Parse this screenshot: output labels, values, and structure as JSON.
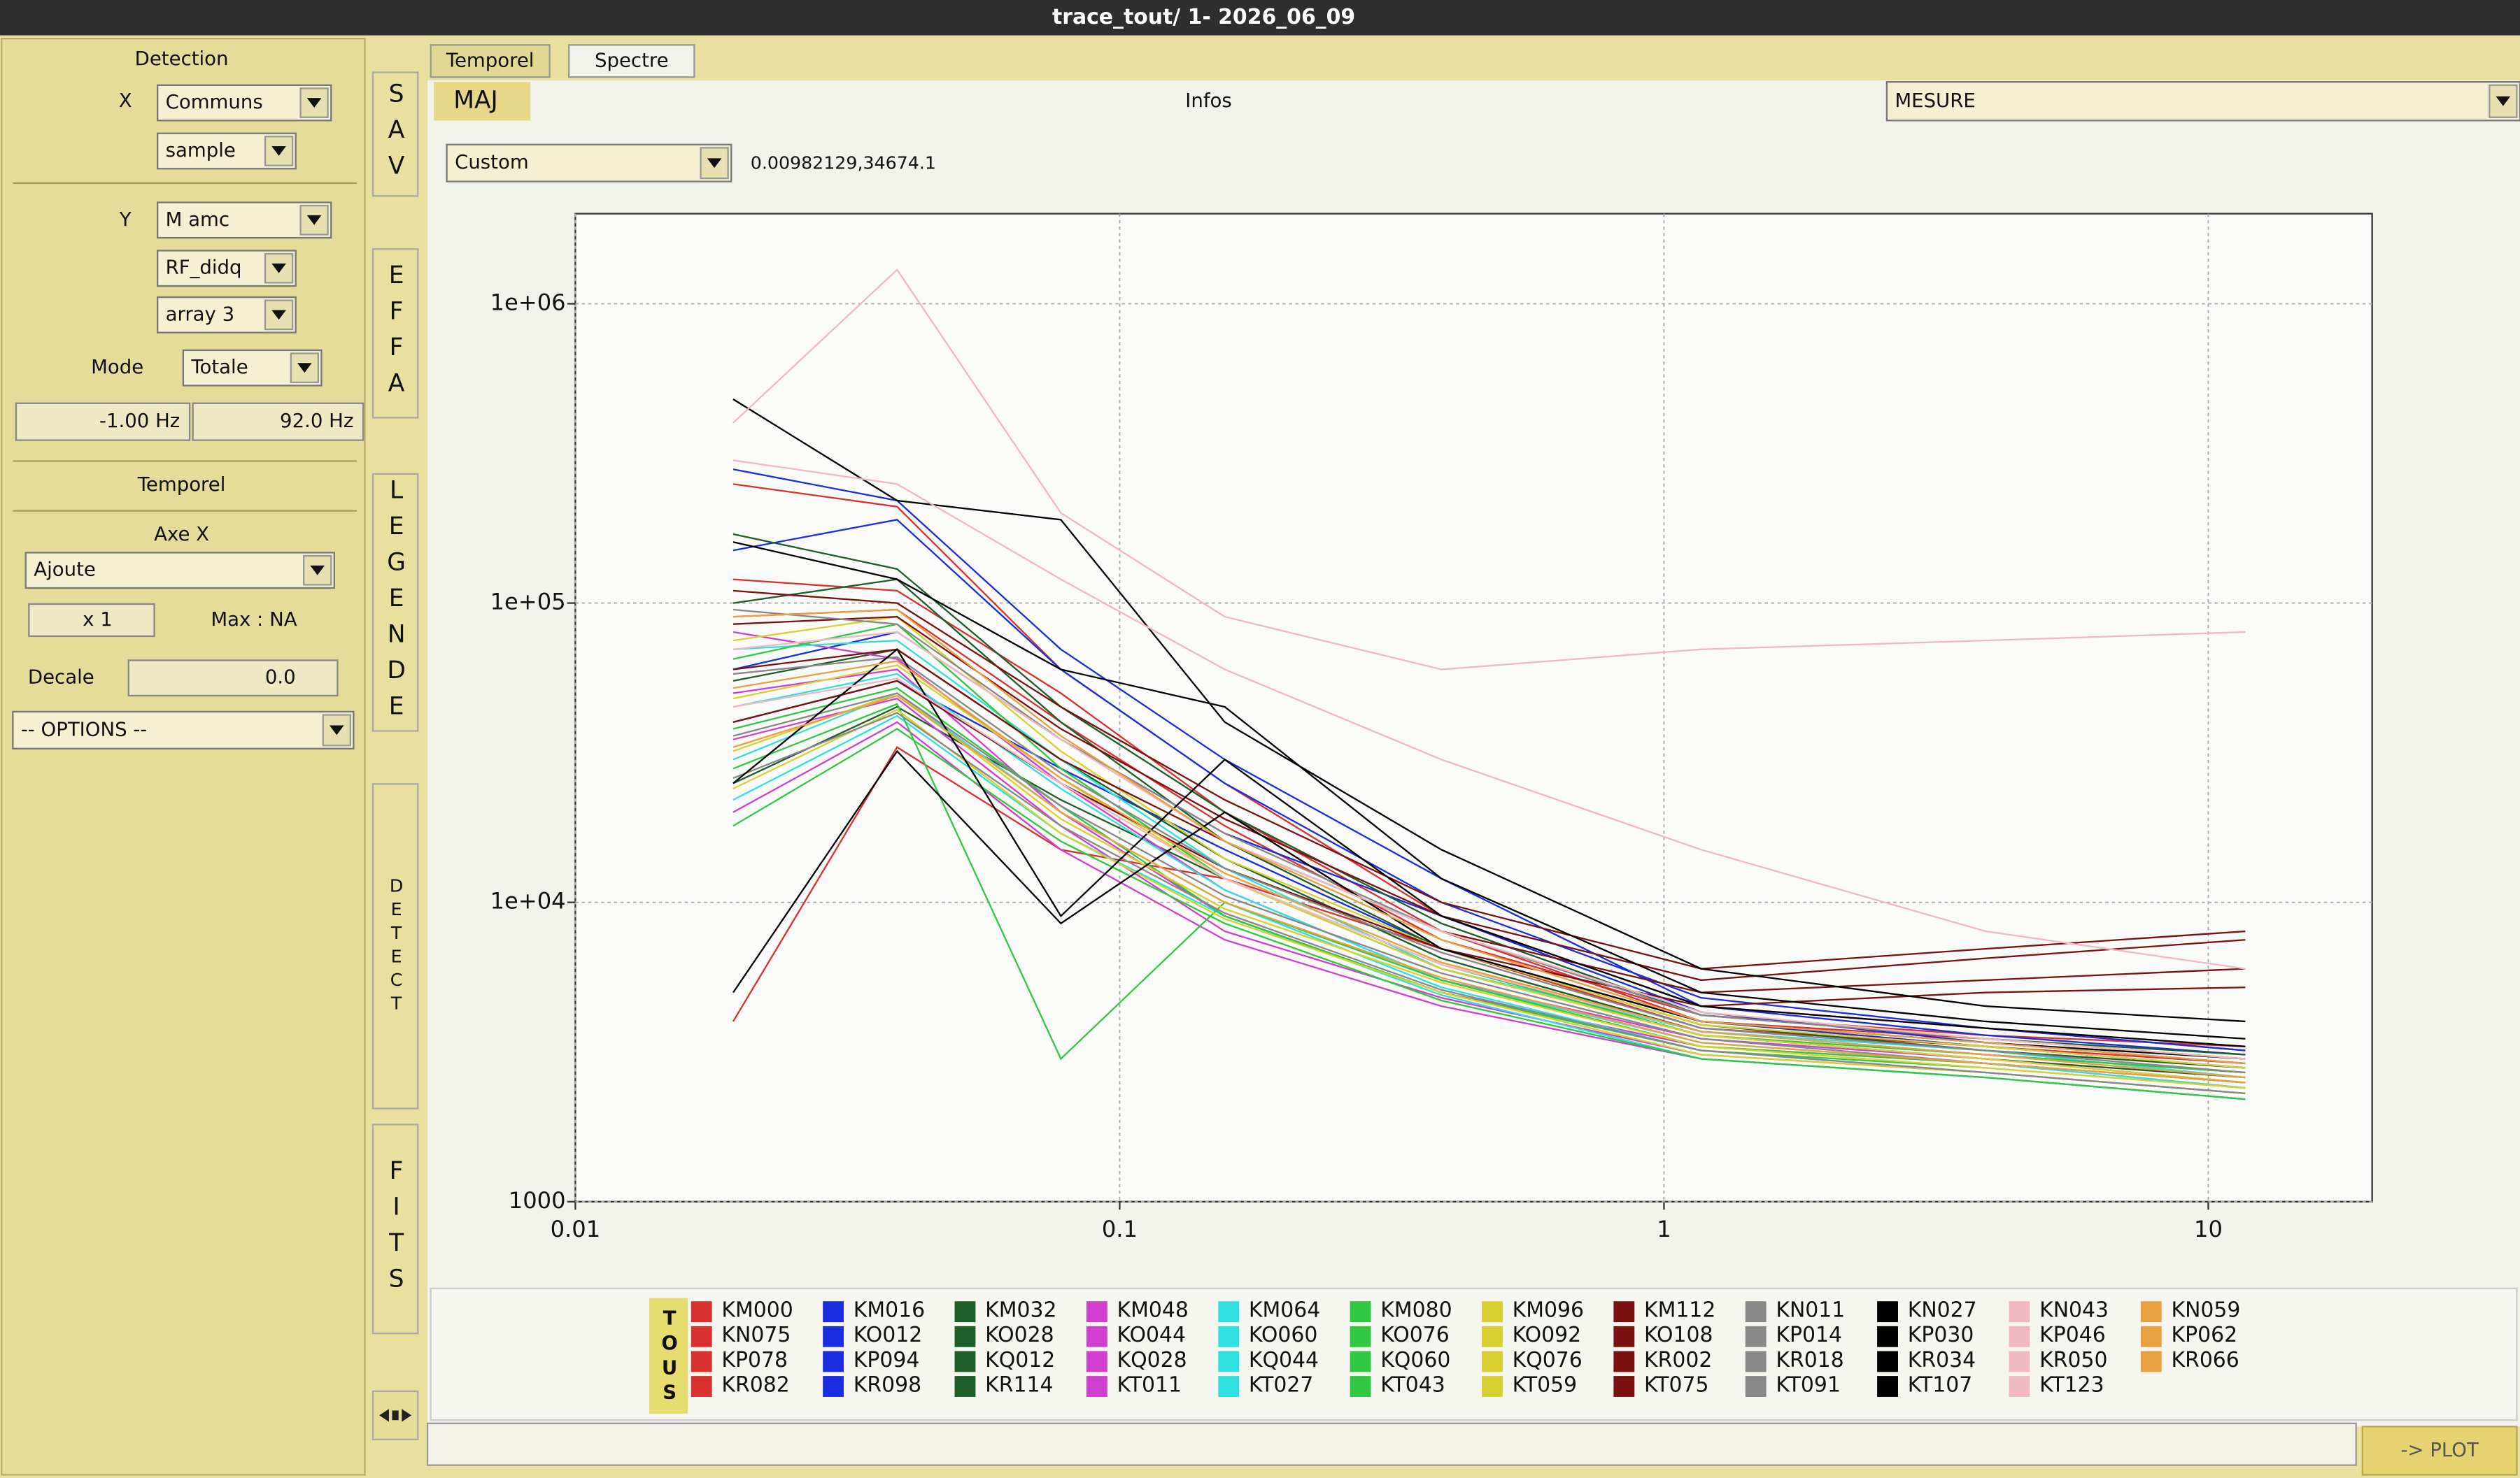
{
  "window": {
    "title": "trace_tout/ 1- 2026_06_09"
  },
  "left_panel": {
    "detection": "Detection",
    "x_label": "X",
    "x_source": "Communs",
    "x_mode": "sample",
    "y_label": "Y",
    "y_source": "M amc",
    "y_signal": "RF_didq",
    "y_array": "array 3",
    "mode_label": "Mode",
    "mode": "Totale",
    "freq_min": "-1.00 Hz",
    "freq_max": "92.0 Hz",
    "temporel": "Temporel",
    "axe_x": "Axe X",
    "axe_x_mode": "Ajoute",
    "multiplier": "x 1",
    "max": "Max : NA",
    "decale_label": "Decale",
    "decale": "0.0",
    "options": "-- OPTIONS --"
  },
  "side_tabs": [
    "SAV",
    "EFFA",
    "LEGENDE",
    "DETECT",
    "FITS"
  ],
  "tabs": [
    "Temporel",
    "Spectre"
  ],
  "toolbar": {
    "maj": "MAJ",
    "infos": "Infos",
    "mesure": "MESURE",
    "scale": "Custom",
    "cursor": "0.00982129,34674.1"
  },
  "legend_all": "TOUS",
  "plot_button": "-> PLOT",
  "chart_data": {
    "type": "line",
    "log_x": true,
    "log_y": true,
    "grid": true,
    "xlim": [
      0.01,
      20
    ],
    "ylim": [
      1000,
      2000000
    ],
    "xticks": [
      0.01,
      0.1,
      1,
      10
    ],
    "yticks": [
      1000,
      {
        "value": 10000,
        "label": "1e+04"
      },
      {
        "value": 100000,
        "label": "1e+05"
      },
      {
        "value": 1000000,
        "label": "1e+06"
      }
    ],
    "x": [
      0.0195,
      0.039,
      0.078,
      0.156,
      0.39,
      1.17,
      3.9,
      11.7
    ],
    "series": [
      {
        "name": "KM000",
        "color": "#d93030",
        "values": [
          250000,
          210000,
          60000,
          25000,
          9000,
          4500,
          3800,
          3200
        ]
      },
      {
        "name": "KN075",
        "color": "#d93030",
        "values": [
          120000,
          110000,
          50000,
          20000,
          8000,
          4000,
          3500,
          3000
        ]
      },
      {
        "name": "KP078",
        "color": "#d93030",
        "values": [
          4000,
          33000,
          15000,
          12000,
          7000,
          3800,
          3300,
          2900
        ]
      },
      {
        "name": "KR082",
        "color": "#d93030",
        "values": [
          90000,
          95000,
          40000,
          18000,
          7500,
          4200,
          3600,
          3300
        ]
      },
      {
        "name": "KM016",
        "color": "#1a2ee0",
        "values": [
          280000,
          220000,
          70000,
          30000,
          12000,
          4500,
          3600,
          3100
        ]
      },
      {
        "name": "KO012",
        "color": "#1a2ee0",
        "values": [
          150000,
          190000,
          60000,
          25000,
          10000,
          4800,
          3800,
          3200
        ]
      },
      {
        "name": "KP094",
        "color": "#1a2ee0",
        "values": [
          60000,
          80000,
          35000,
          17000,
          9000,
          4300,
          3400,
          2900
        ]
      },
      {
        "name": "KR098",
        "color": "#1a2ee0",
        "values": [
          40000,
          55000,
          28000,
          15000,
          7000,
          4000,
          3300,
          2800
        ]
      },
      {
        "name": "KM032",
        "color": "#1d5e2a",
        "values": [
          170000,
          130000,
          45000,
          20000,
          8500,
          4200,
          3500,
          3100
        ]
      },
      {
        "name": "KO028",
        "color": "#1d5e2a",
        "values": [
          100000,
          120000,
          40000,
          16000,
          7000,
          3900,
          3200,
          2800
        ]
      },
      {
        "name": "KQ012",
        "color": "#1d5e2a",
        "values": [
          55000,
          70000,
          30000,
          14000,
          6500,
          3700,
          3100,
          2700
        ]
      },
      {
        "name": "KR114",
        "color": "#1d5e2a",
        "values": [
          25000,
          45000,
          22000,
          12000,
          6000,
          3600,
          3000,
          2600
        ]
      },
      {
        "name": "KM048",
        "color": "#d040d0",
        "values": [
          80000,
          65000,
          25000,
          11000,
          5500,
          3500,
          3000,
          2500
        ]
      },
      {
        "name": "KO044",
        "color": "#d040d0",
        "values": [
          50000,
          60000,
          20000,
          9000,
          5000,
          3300,
          2900,
          2400
        ]
      },
      {
        "name": "KQ028",
        "color": "#d040d0",
        "values": [
          35000,
          48000,
          18000,
          8000,
          4800,
          3100,
          2700,
          2300
        ]
      },
      {
        "name": "KT011",
        "color": "#d040d0",
        "values": [
          20000,
          40000,
          15000,
          7500,
          4500,
          3000,
          2600,
          2200
        ]
      },
      {
        "name": "KM064",
        "color": "#30e0e0",
        "values": [
          70000,
          75000,
          30000,
          13000,
          6000,
          3700,
          3200,
          2600
        ]
      },
      {
        "name": "KO060",
        "color": "#30e0e0",
        "values": [
          45000,
          58000,
          24000,
          11000,
          5500,
          3400,
          2900,
          2400
        ]
      },
      {
        "name": "KQ044",
        "color": "#30e0e0",
        "values": [
          30000,
          50000,
          20000,
          10000,
          5200,
          3200,
          2700,
          2300
        ]
      },
      {
        "name": "KT027",
        "color": "#30e0e0",
        "values": [
          22000,
          42000,
          17000,
          9000,
          4900,
          3000,
          2600,
          2200
        ]
      },
      {
        "name": "KM080",
        "color": "#30c840",
        "values": [
          65000,
          85000,
          28000,
          12000,
          6200,
          3600,
          3100,
          2700
        ]
      },
      {
        "name": "KO076",
        "color": "#30c840",
        "values": [
          38000,
          52000,
          21000,
          9000,
          5000,
          3200,
          2800,
          2400
        ]
      },
      {
        "name": "KQ060",
        "color": "#30c840",
        "values": [
          28000,
          46000,
          3000,
          10000,
          5500,
          3300,
          2900,
          2500
        ]
      },
      {
        "name": "KT043",
        "color": "#30c840",
        "values": [
          18000,
          38000,
          16000,
          8500,
          4700,
          3000,
          2600,
          2200
        ]
      },
      {
        "name": "KM096",
        "color": "#d8d030",
        "values": [
          75000,
          90000,
          32000,
          14000,
          7000,
          3900,
          3300,
          2800
        ]
      },
      {
        "name": "KO092",
        "color": "#d8d030",
        "values": [
          48000,
          62000,
          26000,
          12000,
          6000,
          3600,
          3000,
          2500
        ]
      },
      {
        "name": "KQ076",
        "color": "#d8d030",
        "values": [
          32000,
          50000,
          19000,
          9500,
          5400,
          3300,
          2800,
          2400
        ]
      },
      {
        "name": "KT059",
        "color": "#d8d030",
        "values": [
          24000,
          44000,
          17000,
          8800,
          5000,
          3100,
          2700,
          2300
        ]
      },
      {
        "name": "KM112",
        "color": "#7a1010",
        "values": [
          110000,
          100000,
          45000,
          22000,
          10000,
          6000,
          7000,
          8000
        ]
      },
      {
        "name": "KO108",
        "color": "#7a1010",
        "values": [
          85000,
          90000,
          38000,
          19000,
          9000,
          5500,
          6500,
          7500
        ]
      },
      {
        "name": "KR002",
        "color": "#7a1010",
        "values": [
          60000,
          70000,
          30000,
          16000,
          8000,
          5000,
          5500,
          6000
        ]
      },
      {
        "name": "KT075",
        "color": "#7a1010",
        "values": [
          40000,
          55000,
          25000,
          13000,
          7000,
          4500,
          5000,
          5200
        ]
      },
      {
        "name": "KN011",
        "color": "#888888",
        "values": [
          95000,
          85000,
          35000,
          17000,
          8000,
          4200,
          3500,
          3000
        ]
      },
      {
        "name": "KP014",
        "color": "#888888",
        "values": [
          58000,
          66000,
          27000,
          13000,
          6800,
          3800,
          3200,
          2700
        ]
      },
      {
        "name": "KR018",
        "color": "#888888",
        "values": [
          36000,
          50000,
          21000,
          10500,
          5800,
          3500,
          2900,
          2500
        ]
      },
      {
        "name": "KT091",
        "color": "#888888",
        "values": [
          26000,
          43000,
          18000,
          9200,
          5100,
          3200,
          2700,
          2300
        ]
      },
      {
        "name": "KN027",
        "color": "#000000",
        "values": [
          480000,
          220000,
          190000,
          40000,
          15000,
          6000,
          4500,
          4000
        ]
      },
      {
        "name": "KP030",
        "color": "#000000",
        "values": [
          160000,
          120000,
          60000,
          45000,
          12000,
          5000,
          4000,
          3500
        ]
      },
      {
        "name": "KR034",
        "color": "#000000",
        "values": [
          25000,
          70000,
          9000,
          30000,
          9000,
          4500,
          3800,
          3300
        ]
      },
      {
        "name": "KT107",
        "color": "#000000",
        "values": [
          5000,
          32000,
          8500,
          20000,
          7000,
          4000,
          3400,
          3000
        ]
      },
      {
        "name": "KN043",
        "color": "#f0b8c0",
        "values": [
          400000,
          1300000,
          200000,
          90000,
          60000,
          70000,
          75000,
          80000
        ]
      },
      {
        "name": "KP046",
        "color": "#f0b8c0",
        "values": [
          300000,
          250000,
          120000,
          60000,
          30000,
          15000,
          8000,
          6000
        ]
      },
      {
        "name": "KR050",
        "color": "#f0b8c0",
        "values": [
          70000,
          80000,
          35000,
          16000,
          8000,
          4300,
          3500,
          3000
        ]
      },
      {
        "name": "KT123",
        "color": "#f0b8c0",
        "values": [
          45000,
          56000,
          25000,
          12000,
          6200,
          3700,
          3100,
          2600
        ]
      },
      {
        "name": "KN059",
        "color": "#e8a040",
        "values": [
          90000,
          95000,
          36000,
          16000,
          7500,
          4000,
          3400,
          2900
        ]
      },
      {
        "name": "KP062",
        "color": "#e8a040",
        "values": [
          52000,
          64000,
          26000,
          12500,
          6300,
          3700,
          3100,
          2600
        ]
      },
      {
        "name": "KR066",
        "color": "#e8a040",
        "values": [
          33000,
          49000,
          20000,
          10000,
          5600,
          3400,
          2900,
          2500
        ]
      }
    ]
  }
}
